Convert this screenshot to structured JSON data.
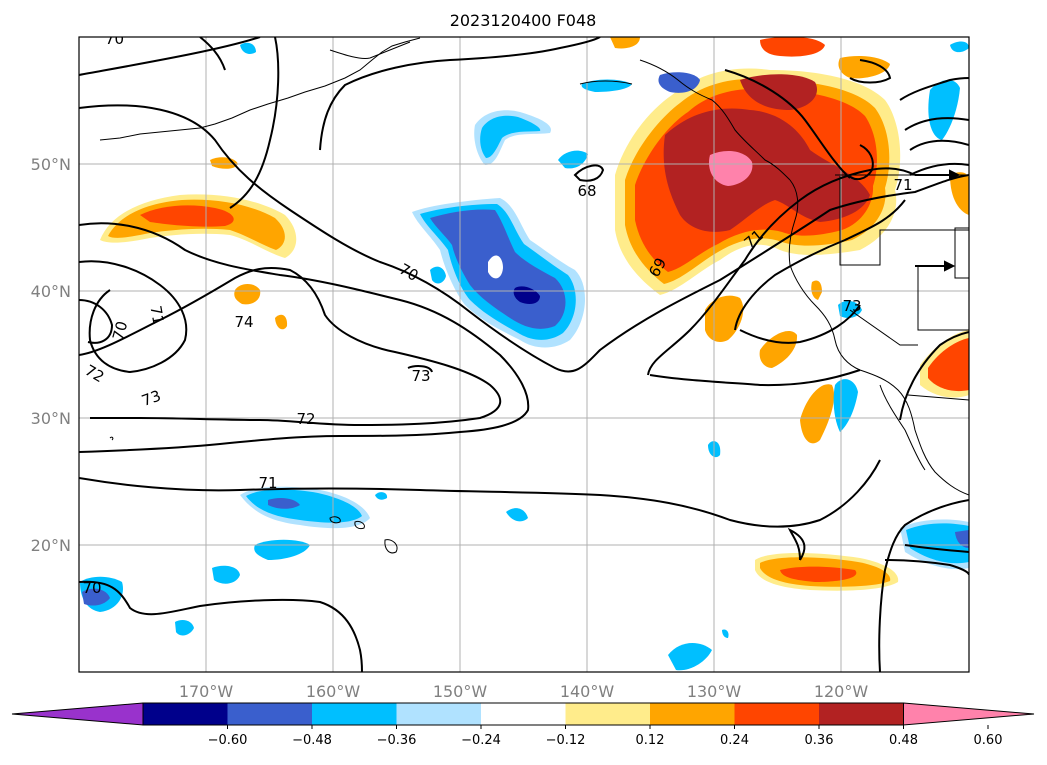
{
  "title": "2023120400 F048",
  "map": {
    "lat_labels": [
      "50°N",
      "40°N",
      "30°N",
      "20°N"
    ],
    "lon_labels": [
      "170°W",
      "160°W",
      "150°W",
      "140°W",
      "130°W",
      "120°W"
    ],
    "lat_range": [
      10,
      60
    ],
    "lon_range": [
      -180,
      -110
    ],
    "contour_labels": [
      "70",
      "70",
      "68",
      "69",
      "71",
      "71",
      "72",
      "73",
      "73",
      "72",
      "71",
      "70",
      "74",
      "70",
      "71",
      "73"
    ]
  },
  "colorbar": {
    "ticks": [
      "−0.60",
      "−0.48",
      "−0.36",
      "−0.24",
      "−0.12",
      "0.12",
      "0.24",
      "0.36",
      "0.48",
      "0.60"
    ],
    "colors": [
      "#9932cc",
      "#00008b",
      "#3a5fcd",
      "#00bfff",
      "#b0e2ff",
      "#ffffff",
      "#ffec8b",
      "#ffa500",
      "#ff4500",
      "#b22222",
      "#ff82ab"
    ]
  }
}
